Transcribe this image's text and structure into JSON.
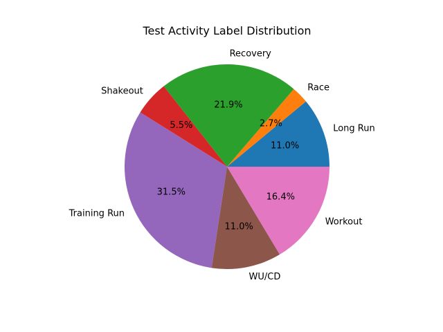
{
  "chart_data": {
    "type": "pie",
    "title": "Test Activity Label Distribution",
    "start_angle_deg": 0,
    "direction": "counterclockwise",
    "slices": [
      {
        "label": "Long Run",
        "value": 11.0,
        "pct_label": "11.0%",
        "color": "#1f77b4"
      },
      {
        "label": "Race",
        "value": 2.7,
        "pct_label": "2.7%",
        "color": "#ff7f0e"
      },
      {
        "label": "Recovery",
        "value": 21.9,
        "pct_label": "21.9%",
        "color": "#2ca02c"
      },
      {
        "label": "Shakeout",
        "value": 5.5,
        "pct_label": "5.5%",
        "color": "#d62728"
      },
      {
        "label": "Training Run",
        "value": 31.5,
        "pct_label": "31.5%",
        "color": "#9467bd"
      },
      {
        "label": "WU/CD",
        "value": 11.0,
        "pct_label": "11.0%",
        "color": "#8c564b"
      },
      {
        "label": "Workout",
        "value": 16.4,
        "pct_label": "16.4%",
        "color": "#e377c2"
      }
    ]
  }
}
